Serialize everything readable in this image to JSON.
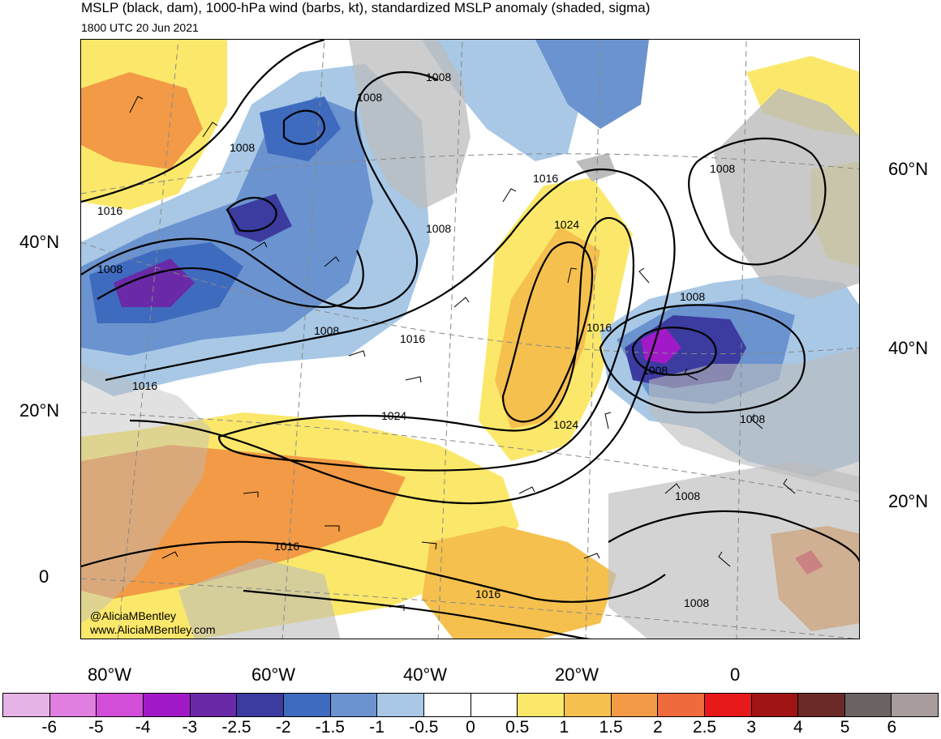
{
  "title": "MSLP (black, dam), 1000-hPa wind (barbs, kt), standardized MSLP anomaly (shaded, sigma)",
  "valid_time": "1800 UTC 20 Jun 2021",
  "credit": {
    "handle": "@AliciaMBentley",
    "website": "www.AliciaMBentley.com"
  },
  "lat_labels_left": [
    "40°N",
    "20°N",
    "0"
  ],
  "lat_labels_right": [
    "60°N",
    "40°N",
    "20°N"
  ],
  "lon_labels": [
    "80°W",
    "60°W",
    "40°W",
    "20°W",
    "0"
  ],
  "isobar_labels": [
    "1008",
    "1008",
    "1008",
    "1016",
    "1008",
    "1008",
    "1016",
    "1016",
    "1024",
    "1008",
    "1016",
    "1016",
    "1008",
    "1008",
    "1024",
    "1024",
    "1008",
    "1008",
    "1008",
    "1016",
    "1016",
    "1008"
  ],
  "colorbar": {
    "colors": [
      "#e6b3e6",
      "#e07fe0",
      "#d24dd8",
      "#a21ac8",
      "#6a2aa8",
      "#3b3ba0",
      "#3f6bbf",
      "#6b93cf",
      "#a8c8e6",
      "#ffffff",
      "#ffffff",
      "#fbe86a",
      "#f5c04e",
      "#f29a45",
      "#ef6a3c",
      "#e8191b",
      "#a01414",
      "#6b2a28",
      "#6b6262",
      "#a89c9c"
    ],
    "labels": [
      "-6",
      "-5",
      "-4",
      "-3",
      "-2.5",
      "-2",
      "-1.5",
      "-1",
      "-0.5",
      "0",
      "0.5",
      "1",
      "1.5",
      "2",
      "2.5",
      "3",
      "4",
      "5",
      "6"
    ]
  }
}
